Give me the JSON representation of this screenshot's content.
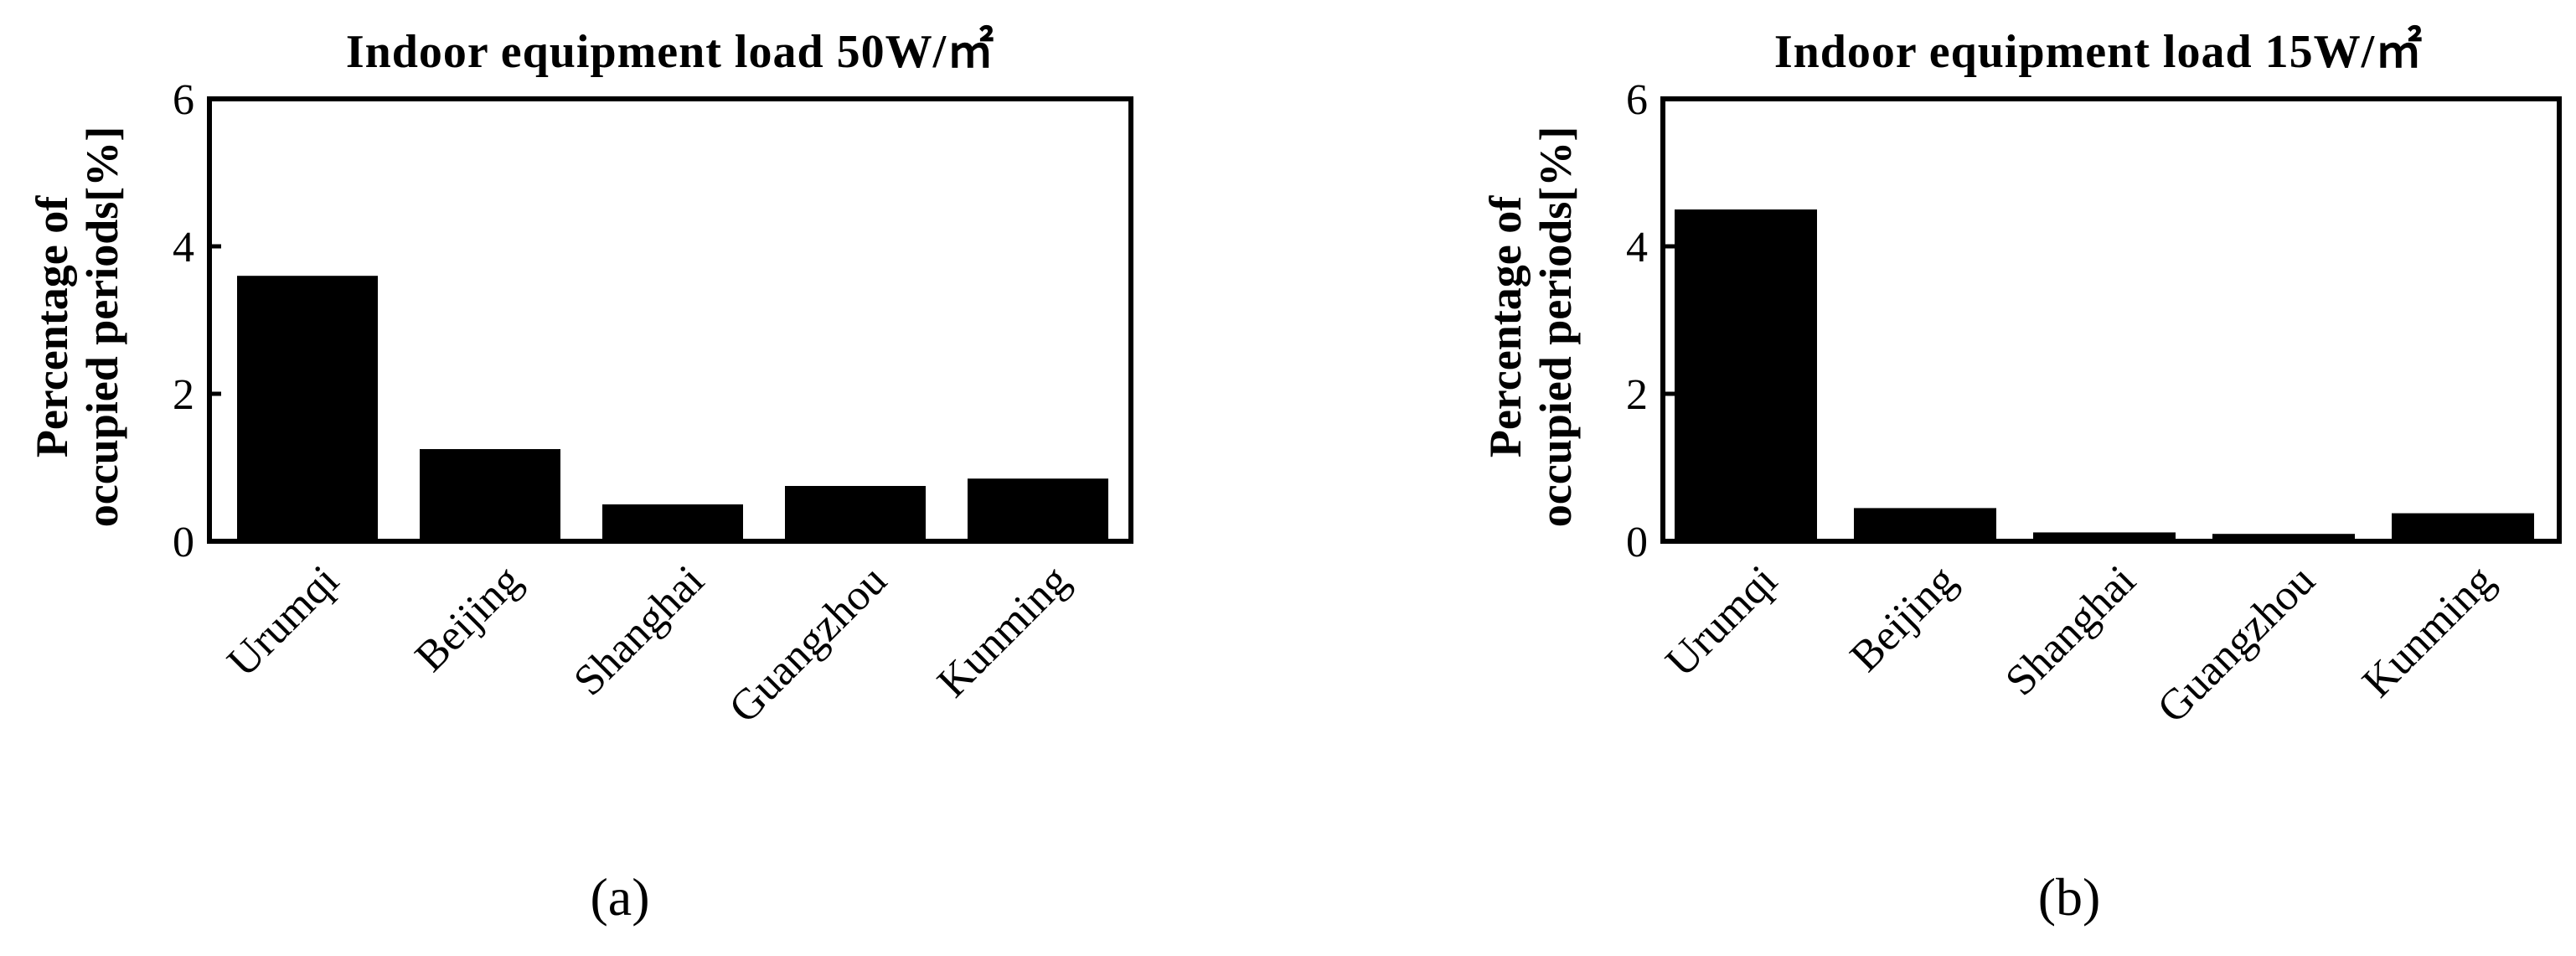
{
  "chart_data": [
    {
      "type": "bar",
      "title": "Indoor equipment load 50W/㎡",
      "ylabel_lines": [
        "Percentage of",
        "occupied periods[%]"
      ],
      "xlabel": "",
      "categories": [
        "Urumqi",
        "Beijing",
        "Shanghai",
        "Guangzhou",
        "Kunming"
      ],
      "values": [
        3.6,
        1.25,
        0.5,
        0.75,
        0.85
      ],
      "ylim": [
        0,
        6
      ],
      "yticks": [
        "0",
        "2",
        "4",
        "6"
      ],
      "bar_color": "#000000",
      "grid": false,
      "panel_label": "(a)"
    },
    {
      "type": "bar",
      "title": "Indoor equipment load 15W/㎡",
      "ylabel_lines": [
        "Percentage of",
        "occupied periods[%]"
      ],
      "xlabel": "",
      "categories": [
        "Urumqi",
        "Beijing",
        "Shanghai",
        "Guangzhou",
        "Kunming"
      ],
      "values": [
        4.5,
        0.45,
        0.12,
        0.1,
        0.38
      ],
      "ylim": [
        0,
        6
      ],
      "yticks": [
        "0",
        "2",
        "4",
        "6"
      ],
      "bar_color": "#000000",
      "grid": false,
      "panel_label": "(b)"
    }
  ]
}
